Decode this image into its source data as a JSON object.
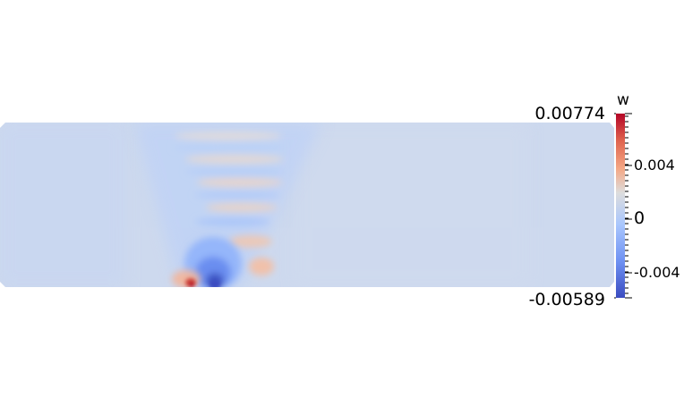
{
  "scalar_bar": {
    "title": "w",
    "max_label": "0.00774",
    "min_label": "-0.00589",
    "tick_labels": [
      "0.004",
      "0",
      "-0.004"
    ],
    "range": [
      -0.00589,
      0.00774
    ],
    "colormap": "Cool to Warm",
    "colors": {
      "low": "#3b4cc0",
      "mid": "#dddddd",
      "high": "#b40426"
    }
  },
  "field": {
    "variable": "w",
    "background_color": "#cdd9ee"
  }
}
